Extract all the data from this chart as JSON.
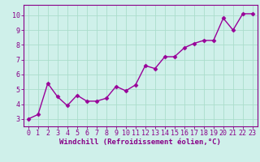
{
  "x": [
    0,
    1,
    2,
    3,
    4,
    5,
    6,
    7,
    8,
    9,
    10,
    11,
    12,
    13,
    14,
    15,
    16,
    17,
    18,
    19,
    20,
    21,
    22,
    23
  ],
  "y": [
    3.0,
    3.3,
    5.4,
    4.5,
    3.9,
    4.6,
    4.2,
    4.2,
    4.4,
    5.2,
    4.9,
    5.3,
    6.6,
    6.4,
    7.2,
    7.2,
    7.8,
    8.1,
    8.3,
    8.3,
    9.8,
    9.0,
    10.1,
    10.1
  ],
  "line_color": "#990099",
  "marker": "D",
  "marker_size": 2.5,
  "bg_color": "#cff0ea",
  "grid_color": "#aaddcc",
  "xlabel": "Windchill (Refroidissement éolien,°C)",
  "ylabel": "",
  "xlim": [
    -0.5,
    23.5
  ],
  "ylim": [
    2.5,
    10.7
  ],
  "yticks": [
    3,
    4,
    5,
    6,
    7,
    8,
    9,
    10
  ],
  "xticks": [
    0,
    1,
    2,
    3,
    4,
    5,
    6,
    7,
    8,
    9,
    10,
    11,
    12,
    13,
    14,
    15,
    16,
    17,
    18,
    19,
    20,
    21,
    22,
    23
  ],
  "tick_label_color": "#880088",
  "axis_color": "#880088",
  "xlabel_fontsize": 6.5,
  "tick_fontsize": 6.0,
  "linewidth": 1.0
}
